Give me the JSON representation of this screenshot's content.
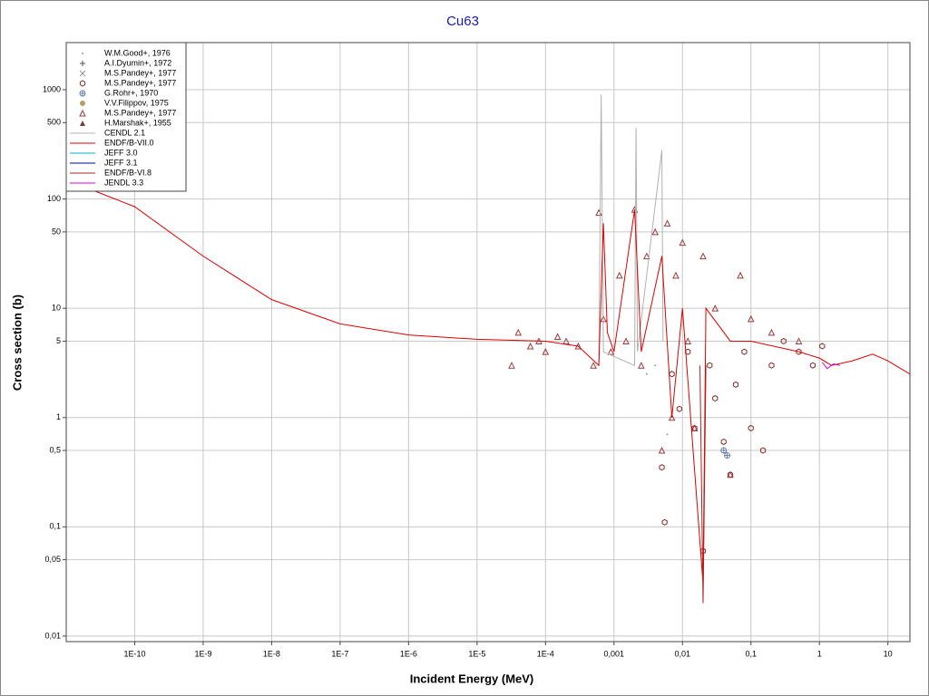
{
  "chart_data": {
    "type": "line",
    "title": "Cu63",
    "x_label": "Incident Energy (MeV)",
    "y_label": "Cross section (b)",
    "log_x": true,
    "log_y": true,
    "grid": true,
    "legend": "upper left",
    "xlim": [
      1e-11,
      21
    ],
    "ylim": [
      0.0089,
      2700
    ],
    "xticks": [
      {
        "value": 1e-10,
        "label": "1E-10"
      },
      {
        "value": 1e-09,
        "label": "1E-9"
      },
      {
        "value": 1e-08,
        "label": "1E-8"
      },
      {
        "value": 1e-07,
        "label": "1E-7"
      },
      {
        "value": 1e-06,
        "label": "1E-6"
      },
      {
        "value": 1e-05,
        "label": "1E-5"
      },
      {
        "value": 0.0001,
        "label": "1E-4"
      },
      {
        "value": 0.001,
        "label": "0,001"
      },
      {
        "value": 0.01,
        "label": "0,01"
      },
      {
        "value": 0.1,
        "label": "0,1"
      },
      1,
      10
    ],
    "yticks": [
      {
        "value": 0.01,
        "label": "0,01"
      },
      {
        "value": 0.05,
        "label": "0,05"
      },
      {
        "value": 0.1,
        "label": "0,1"
      },
      {
        "value": 0.5,
        "label": "0,5"
      },
      1,
      5,
      10,
      50,
      100,
      500,
      1000
    ],
    "series": [
      {
        "name": "W.M.Good+, 1976",
        "color": "#999999",
        "marker": "dot",
        "x": [
          0.003,
          0.004,
          0.006
        ],
        "values": [
          2.5,
          3,
          0.7
        ]
      },
      {
        "name": "A.I.Dyumin+, 1972",
        "color": "#555555",
        "marker": "plus",
        "x": [],
        "values": []
      },
      {
        "name": "M.S.Pandey+, 1977",
        "color": "#9a8bb0",
        "marker": "x",
        "x": [],
        "values": []
      },
      {
        "name": "M.S.Pandey+, 1977",
        "color": "#8b2c2c",
        "marker": "hexagon",
        "x": [
          0.005,
          0.0055,
          0.007,
          0.009,
          0.012,
          0.015,
          0.02,
          0.025,
          0.03,
          0.04,
          0.05,
          0.06,
          0.08,
          0.1,
          0.15,
          0.2,
          0.3,
          0.5,
          0.8,
          1.1
        ],
        "values": [
          0.35,
          0.11,
          2.5,
          1.2,
          4,
          0.8,
          0.06,
          3,
          1.5,
          0.6,
          0.3,
          2,
          4,
          0.8,
          0.5,
          3,
          5,
          4,
          3,
          4.5
        ]
      },
      {
        "name": "G.Rohr+, 1970",
        "color": "#6a7fa8",
        "marker": "circlecross",
        "x": [
          0.04,
          0.045
        ],
        "values": [
          0.5,
          0.45
        ]
      },
      {
        "name": "V.V.Filippov, 1975",
        "color": "#b0a070",
        "marker": "filledcircle",
        "x": [],
        "values": []
      },
      {
        "name": "M.S.Pandey+, 1977",
        "color": "#9b3a3a",
        "marker": "triangle",
        "x": [
          3.2e-05,
          4e-05,
          6e-05,
          8e-05,
          0.0001,
          0.00015,
          0.0002,
          0.0003,
          0.0005,
          0.0006,
          0.0007,
          0.0009,
          0.0012,
          0.0015,
          0.002,
          0.0025,
          0.003,
          0.004,
          0.005,
          0.006,
          0.007,
          0.008,
          0.01,
          0.012,
          0.015,
          0.02,
          0.03,
          0.05,
          0.07,
          0.1,
          0.2,
          0.5
        ],
        "values": [
          3,
          6,
          4.5,
          5,
          4,
          5.5,
          5,
          4.5,
          3,
          75,
          8,
          4,
          20,
          5,
          80,
          3,
          30,
          50,
          0.5,
          60,
          1,
          20,
          40,
          5,
          0.8,
          30,
          10,
          0.3,
          20,
          8,
          6,
          5
        ]
      },
      {
        "name": "H.Marshak+, 1955",
        "color": "#6a4040",
        "marker": "filledtriangle",
        "x": [],
        "values": []
      },
      {
        "name": "CENDL 2.1",
        "color": "#b0b0b0",
        "x": [
          0.0006,
          0.00065,
          0.0007,
          0.002,
          0.0021,
          0.0022,
          0.005,
          0.0052
        ],
        "values": [
          3,
          900,
          4,
          3,
          450,
          4,
          280,
          5
        ]
      },
      {
        "name": "ENDF/B-VII.0",
        "color": "#dd0000",
        "x": [
          1e-11,
          1e-10,
          1e-09,
          1e-08,
          1e-07,
          1e-06,
          1e-05,
          3e-05,
          0.0001,
          0.0003,
          0.0006,
          0.0007,
          0.0008,
          0.001,
          0.002,
          0.0025,
          0.005,
          0.007,
          0.01,
          0.02,
          0.022,
          0.05,
          0.1,
          0.5,
          1,
          1.5,
          3,
          6,
          10,
          21
        ],
        "values": [
          150,
          85,
          30,
          12,
          7.2,
          5.7,
          5.2,
          5.1,
          5,
          4.5,
          3,
          60,
          6,
          4,
          80,
          4,
          30,
          1,
          10,
          0.03,
          10,
          5,
          5,
          4,
          3.5,
          3,
          3.3,
          3.8,
          3.3,
          2.5
        ]
      },
      {
        "name": "JEFF 3.0",
        "color": "#00b0d0",
        "x": [],
        "values": []
      },
      {
        "name": "JEFF 3.1",
        "color": "#0000aa",
        "x": [],
        "values": []
      },
      {
        "name": "ENDF/B-VI.8",
        "color": "#b02020",
        "x": [
          0.018,
          0.02,
          0.022
        ],
        "values": [
          3,
          0.02,
          3
        ]
      },
      {
        "name": "JENDL 3.3",
        "color": "#e000e0",
        "x": [
          1.1,
          1.3,
          1.6,
          2
        ],
        "values": [
          3.2,
          2.8,
          3.1,
          3
        ]
      }
    ]
  }
}
